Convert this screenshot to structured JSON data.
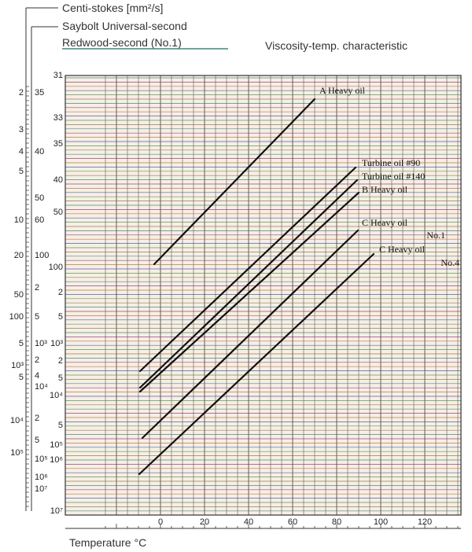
{
  "header": {
    "scale_labels": [
      "Centi-stokes [mm²/s]",
      "Saybolt Universal-second",
      "Redwood-second (No.1)"
    ]
  },
  "chart_data": {
    "type": "line",
    "title": "Viscosity-temp. characteristic",
    "xlabel": "Temperature °C",
    "x_ticks": [
      0,
      20,
      40,
      60,
      80,
      100,
      120
    ],
    "xlim": [
      -20,
      140
    ],
    "grid": true,
    "y_scale": "log-log (viscosity chart)",
    "scales": {
      "centistokes": [
        {
          "label": "2",
          "v": 2
        },
        {
          "label": "3",
          "v": 3
        },
        {
          "label": "4",
          "v": 4
        },
        {
          "label": "5",
          "v": 5
        },
        {
          "label": "10",
          "v": 10
        },
        {
          "label": "20",
          "v": 20
        },
        {
          "label": "50",
          "v": 50
        },
        {
          "label": "100",
          "v": 100
        },
        {
          "label": "5",
          "v": 500
        },
        {
          "label": "10³",
          "v": 1000
        },
        {
          "label": "5",
          "v": 5000
        },
        {
          "label": "10⁴",
          "v": 10000
        },
        {
          "label": "10⁵",
          "v": 100000
        }
      ],
      "saybolt": [
        {
          "label": "35",
          "v": 35
        },
        {
          "label": "40",
          "v": 40
        },
        {
          "label": "50",
          "v": 50
        },
        {
          "label": "60",
          "v": 60
        },
        {
          "label": "100",
          "v": 100
        },
        {
          "label": "2",
          "v": 200
        },
        {
          "label": "5",
          "v": 500
        },
        {
          "label": "10³",
          "v": 1000
        },
        {
          "label": "2",
          "v": 2000
        },
        {
          "label": "4",
          "v": 4000
        },
        {
          "label": "10⁴",
          "v": 10000
        },
        {
          "label": "2",
          "v": 20000
        },
        {
          "label": "5",
          "v": 50000
        },
        {
          "label": "10⁵",
          "v": 100000
        },
        {
          "label": "10⁶",
          "v": 1000000
        },
        {
          "label": "10⁷",
          "v": 10000000
        }
      ],
      "redwood": [
        {
          "label": "31",
          "v": 31
        },
        {
          "label": "33",
          "v": 33
        },
        {
          "label": "35",
          "v": 35
        },
        {
          "label": "40",
          "v": 40
        },
        {
          "label": "50",
          "v": 50
        },
        {
          "label": "100",
          "v": 100
        },
        {
          "label": "2",
          "v": 200
        },
        {
          "label": "5",
          "v": 500
        },
        {
          "label": "10³",
          "v": 1000
        },
        {
          "label": "2",
          "v": 2000
        },
        {
          "label": "5",
          "v": 5000
        },
        {
          "label": "10⁴",
          "v": 10000
        },
        {
          "label": "5",
          "v": 50000
        },
        {
          "label": "10⁵",
          "v": 100000
        },
        {
          "label": "10⁶",
          "v": 1000000
        },
        {
          "label": "10⁷",
          "v": 10000000
        }
      ]
    },
    "series": [
      {
        "name": "A Heavy oil",
        "x": [
          -5,
          80
        ],
        "y_cst": [
          105,
          2
        ]
      },
      {
        "name": "Turbine oil #90",
        "x": [
          -12,
          104
        ],
        "y_cst": [
          1500,
          4
        ]
      },
      {
        "name": "Turbine oil #140",
        "x": [
          -12,
          106
        ],
        "y_cst": [
          2500,
          4.5
        ]
      },
      {
        "name": "B Heavy oil",
        "x": [
          -12,
          107
        ],
        "y_cst": [
          3200,
          5.5
        ]
      },
      {
        "name": "C Heavy oil No.1",
        "x": [
          -12,
          100
        ],
        "y_cst": [
          40000,
          18
        ]
      },
      {
        "name": "C Heavy oil No.4",
        "x": [
          -12,
          112
        ],
        "y_cst": [
          200000,
          30
        ]
      }
    ],
    "series_labels": [
      {
        "text": "A  Heavy oil"
      },
      {
        "text": "Turbine oil  #90"
      },
      {
        "text": "Turbine oil  #140"
      },
      {
        "text": "B  Heavy oil"
      },
      {
        "text": "C  Heavy oil"
      },
      {
        "text": "No.1"
      },
      {
        "text": "C  Heavy oil"
      },
      {
        "text": "No.4"
      }
    ]
  }
}
